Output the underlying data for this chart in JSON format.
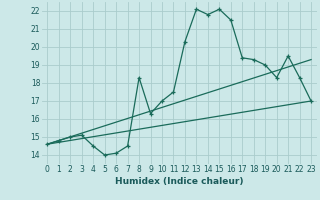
{
  "xlabel": "Humidex (Indice chaleur)",
  "ylabel": "",
  "bg_color": "#cce8e8",
  "grid_color": "#aacccc",
  "line_color": "#1a6b5a",
  "xlim": [
    -0.5,
    23.5
  ],
  "ylim": [
    13.5,
    22.5
  ],
  "xticks": [
    0,
    1,
    2,
    3,
    4,
    5,
    6,
    7,
    8,
    9,
    10,
    11,
    12,
    13,
    14,
    15,
    16,
    17,
    18,
    19,
    20,
    21,
    22,
    23
  ],
  "yticks": [
    14,
    15,
    16,
    17,
    18,
    19,
    20,
    21,
    22
  ],
  "main_line_x": [
    0,
    1,
    2,
    3,
    4,
    5,
    6,
    7,
    8,
    9,
    10,
    11,
    12,
    13,
    14,
    15,
    16,
    17,
    18,
    19,
    20,
    21,
    22,
    23
  ],
  "main_line_y": [
    14.6,
    14.8,
    15.0,
    15.1,
    14.5,
    14.0,
    14.1,
    14.5,
    18.3,
    16.3,
    17.0,
    17.5,
    20.3,
    22.1,
    21.8,
    22.1,
    21.5,
    19.4,
    19.3,
    19.0,
    18.3,
    19.5,
    18.3,
    17.0
  ],
  "trend_line1_x": [
    0,
    23
  ],
  "trend_line1_y": [
    14.6,
    19.3
  ],
  "trend_line2_x": [
    0,
    23
  ],
  "trend_line2_y": [
    14.6,
    17.0
  ]
}
